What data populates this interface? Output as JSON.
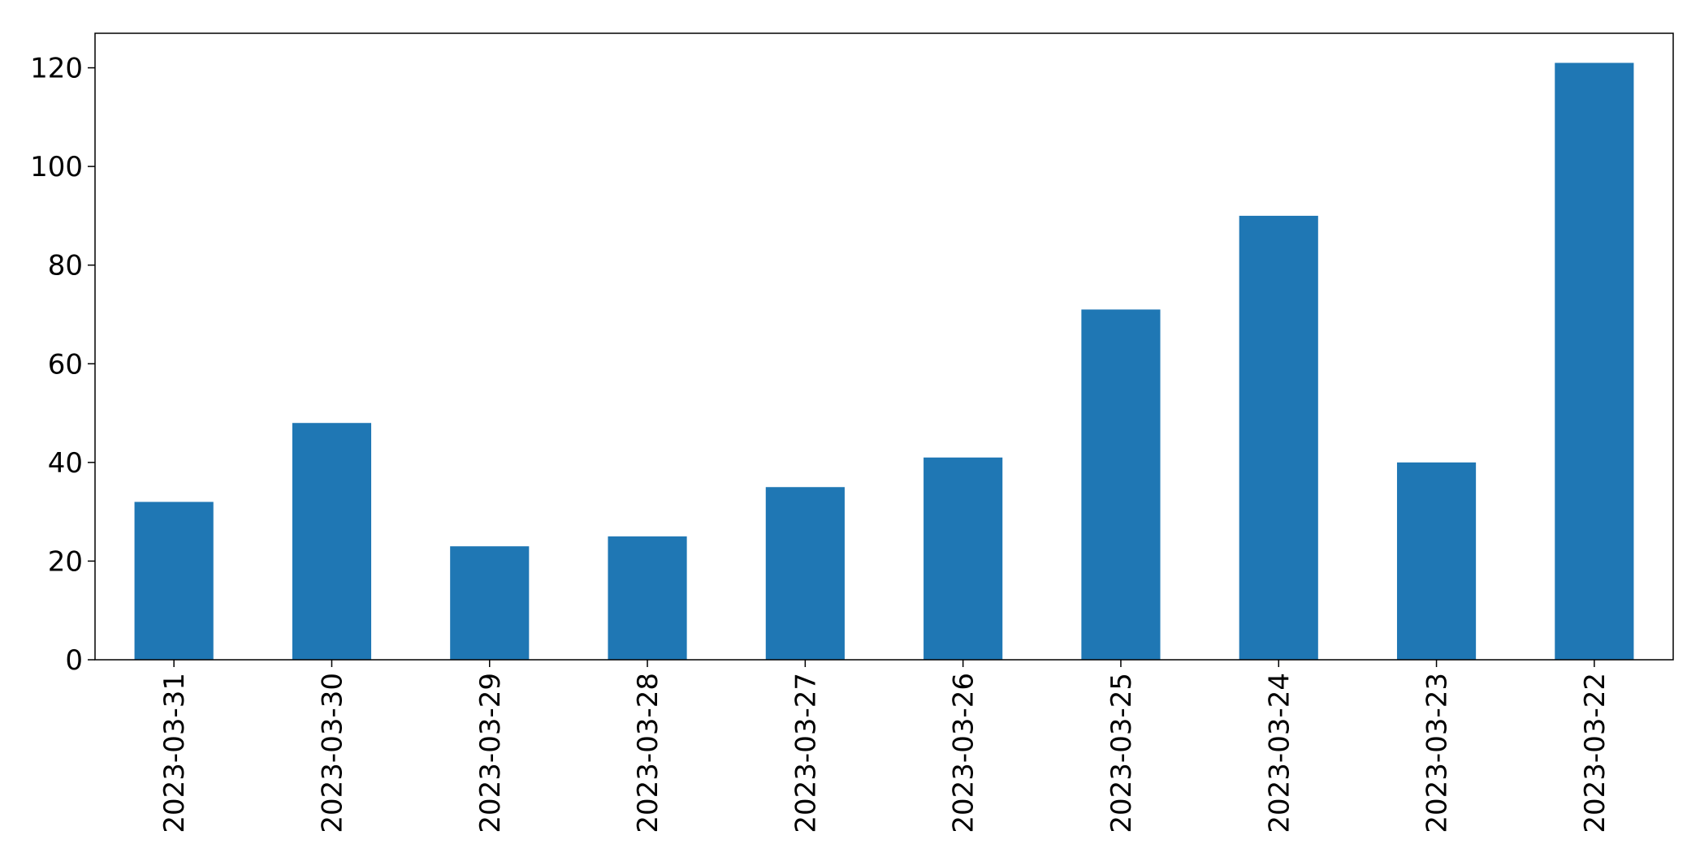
{
  "chart_data": {
    "type": "bar",
    "categories": [
      "2023-03-31",
      "2023-03-30",
      "2023-03-29",
      "2023-03-28",
      "2023-03-27",
      "2023-03-26",
      "2023-03-25",
      "2023-03-24",
      "2023-03-23",
      "2023-03-22"
    ],
    "values": [
      32,
      48,
      23,
      25,
      35,
      41,
      71,
      90,
      40,
      121
    ],
    "yticks": [
      "0",
      "20",
      "40",
      "60",
      "80",
      "100",
      "120"
    ],
    "ylim": [
      0,
      127
    ],
    "title": "",
    "xlabel": "",
    "ylabel": "",
    "legend": "none",
    "grid": false,
    "bar_color": "#1f77b4",
    "xtick_rotation": "vertical"
  }
}
